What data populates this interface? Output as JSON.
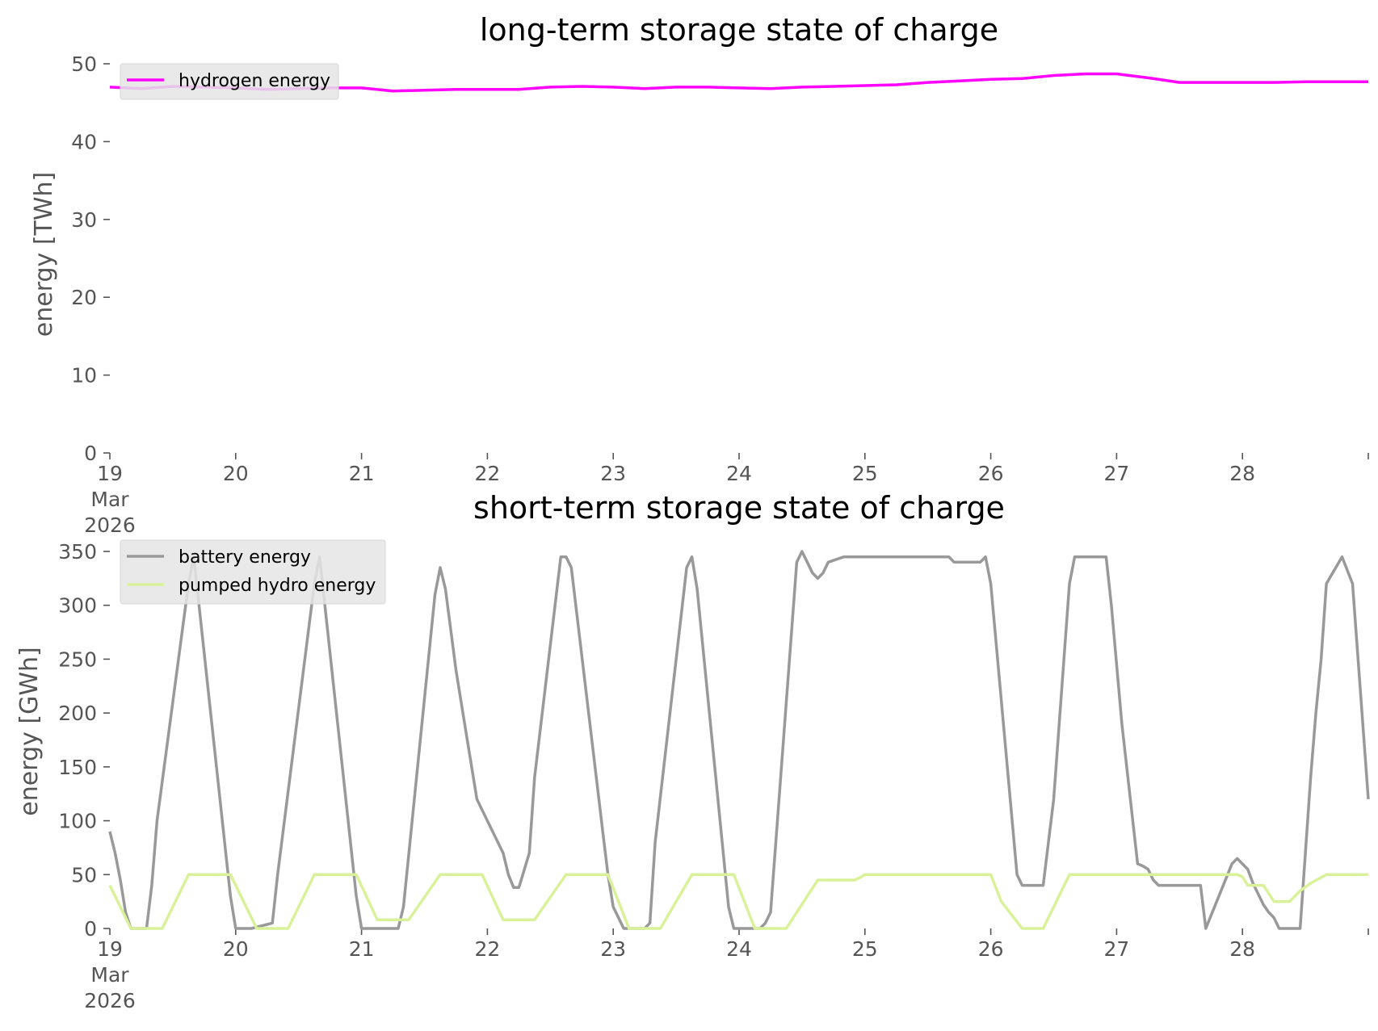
{
  "chart_data": [
    {
      "type": "line",
      "title": "long-term storage state of charge",
      "ylabel": "energy [TWh]",
      "xlabel": "",
      "ylim": [
        0,
        50
      ],
      "xlim": [
        0,
        240
      ],
      "x_unit": "hours since 19 Mar 2026 00:00",
      "yticks": [
        "0",
        "10",
        "20",
        "30",
        "40",
        "50"
      ],
      "xticks": [
        {
          "x": 0,
          "lines": [
            "19",
            "Mar",
            "2026"
          ]
        },
        {
          "x": 24,
          "lines": [
            "20"
          ]
        },
        {
          "x": 48,
          "lines": [
            "21"
          ]
        },
        {
          "x": 72,
          "lines": [
            "22"
          ]
        },
        {
          "x": 96,
          "lines": [
            "23"
          ]
        },
        {
          "x": 120,
          "lines": [
            "24"
          ]
        },
        {
          "x": 144,
          "lines": [
            "25"
          ]
        },
        {
          "x": 168,
          "lines": [
            "26"
          ]
        },
        {
          "x": 192,
          "lines": [
            "27"
          ]
        },
        {
          "x": 216,
          "lines": [
            "28"
          ]
        },
        {
          "x": 240,
          "lines": [
            ""
          ]
        }
      ],
      "grid": false,
      "legend_position": "top-left",
      "series": [
        {
          "name": "hydrogen energy",
          "color": "#ff00ff",
          "x": [
            0,
            6,
            12,
            18,
            24,
            30,
            36,
            42,
            48,
            54,
            60,
            66,
            72,
            78,
            84,
            90,
            96,
            102,
            108,
            114,
            120,
            126,
            132,
            138,
            144,
            150,
            156,
            162,
            168,
            174,
            180,
            186,
            192,
            198,
            204,
            210,
            216,
            222,
            228,
            234,
            240
          ],
          "y": [
            47.0,
            46.8,
            47.1,
            47.0,
            46.9,
            46.7,
            46.8,
            46.9,
            46.9,
            46.5,
            46.6,
            46.7,
            46.7,
            46.7,
            47.0,
            47.1,
            47.0,
            46.8,
            47.0,
            47.0,
            46.9,
            46.8,
            47.0,
            47.1,
            47.2,
            47.3,
            47.6,
            47.8,
            48.0,
            48.1,
            48.5,
            48.7,
            48.7,
            48.2,
            47.6,
            47.6,
            47.6,
            47.6,
            47.7,
            47.7,
            47.7
          ]
        }
      ]
    },
    {
      "type": "line",
      "title": "short-term storage state of charge",
      "ylabel": "energy [GWh]",
      "xlabel": "",
      "ylim": [
        0,
        350
      ],
      "xlim": [
        0,
        240
      ],
      "x_unit": "hours since 19 Mar 2026 00:00",
      "yticks": [
        "0",
        "50",
        "100",
        "150",
        "200",
        "250",
        "300",
        "350"
      ],
      "xticks": [
        {
          "x": 0,
          "lines": [
            "19",
            "Mar",
            "2026"
          ]
        },
        {
          "x": 24,
          "lines": [
            "20"
          ]
        },
        {
          "x": 48,
          "lines": [
            "21"
          ]
        },
        {
          "x": 72,
          "lines": [
            "22"
          ]
        },
        {
          "x": 96,
          "lines": [
            "23"
          ]
        },
        {
          "x": 120,
          "lines": [
            "24"
          ]
        },
        {
          "x": 144,
          "lines": [
            "25"
          ]
        },
        {
          "x": 168,
          "lines": [
            "26"
          ]
        },
        {
          "x": 192,
          "lines": [
            "27"
          ]
        },
        {
          "x": 216,
          "lines": [
            "28"
          ]
        },
        {
          "x": 240,
          "lines": [
            ""
          ]
        }
      ],
      "grid": false,
      "legend_position": "top-left",
      "series": [
        {
          "name": "battery energy",
          "color": "#999999",
          "x": [
            0,
            1,
            2,
            3,
            4,
            7,
            8,
            9,
            15,
            16,
            17,
            23,
            24,
            27,
            31,
            32,
            39,
            40,
            41,
            47,
            48,
            49,
            55,
            56,
            62,
            63,
            64,
            66,
            68,
            70,
            72,
            75,
            76,
            77,
            78,
            80,
            81,
            86,
            87,
            88,
            94,
            95,
            96,
            98,
            102,
            103,
            104,
            110,
            111,
            112,
            118,
            119,
            120,
            124,
            125,
            126,
            131,
            132,
            133,
            134,
            135,
            136,
            137,
            140,
            141,
            143,
            144,
            145,
            153,
            154,
            155,
            160,
            161,
            162,
            165,
            166,
            167,
            168,
            173,
            174,
            175,
            178,
            180,
            183,
            184,
            185,
            190,
            191,
            193,
            196,
            197,
            198,
            199,
            200,
            202,
            208,
            209,
            214,
            215,
            217,
            218,
            220,
            221,
            222,
            223,
            227,
            229,
            230,
            231,
            232,
            235,
            237,
            240
          ],
          "y": [
            90,
            70,
            45,
            15,
            0,
            0,
            40,
            100,
            320,
            345,
            300,
            30,
            0,
            0,
            5,
            50,
            320,
            345,
            300,
            30,
            0,
            0,
            0,
            20,
            310,
            335,
            315,
            240,
            180,
            120,
            100,
            70,
            50,
            38,
            38,
            70,
            140,
            345,
            345,
            335,
            90,
            50,
            20,
            0,
            0,
            5,
            80,
            335,
            345,
            315,
            20,
            0,
            0,
            0,
            5,
            15,
            340,
            350,
            340,
            330,
            325,
            330,
            340,
            345,
            345,
            345,
            345,
            345,
            345,
            345,
            345,
            345,
            340,
            340,
            340,
            340,
            345,
            320,
            50,
            40,
            40,
            40,
            120,
            320,
            345,
            345,
            345,
            300,
            190,
            60,
            58,
            55,
            45,
            40,
            40,
            40,
            0,
            60,
            65,
            55,
            42,
            22,
            15,
            10,
            0,
            0,
            140,
            200,
            250,
            320,
            345,
            320,
            120
          ]
        },
        {
          "name": "pumped hydro energy",
          "color": "#d9f29a",
          "x": [
            0,
            4,
            10,
            15,
            23,
            28,
            34,
            39,
            47,
            51,
            57,
            63,
            71,
            75,
            81,
            87,
            95,
            99,
            105,
            111,
            119,
            123,
            129,
            135,
            141,
            142,
            143,
            144,
            145,
            150,
            155,
            160,
            165,
            168,
            170,
            174,
            178,
            183,
            190,
            196,
            201,
            206,
            210,
            215,
            216,
            217,
            220,
            222,
            224,
            225,
            226,
            227,
            229,
            232,
            240
          ],
          "y": [
            40,
            0,
            0,
            50,
            50,
            0,
            0,
            50,
            50,
            8,
            8,
            50,
            50,
            8,
            8,
            50,
            50,
            0,
            0,
            50,
            50,
            0,
            0,
            45,
            45,
            45,
            47,
            50,
            50,
            50,
            50,
            50,
            50,
            50,
            25,
            0,
            0,
            50,
            50,
            50,
            50,
            50,
            50,
            50,
            48,
            40,
            40,
            25,
            25,
            25,
            30,
            35,
            42,
            50,
            50
          ]
        }
      ]
    }
  ]
}
